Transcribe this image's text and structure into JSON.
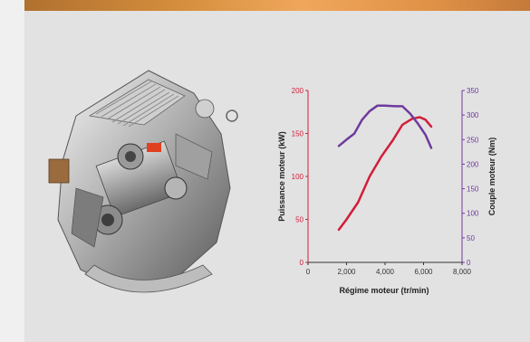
{
  "colors": {
    "power": "#d21d3a",
    "torque": "#6e3a9e",
    "panel": "#e2e2e2",
    "banner": "#d48d3c"
  },
  "image": {
    "icon": "engine-illustration"
  },
  "chart_data": {
    "type": "line",
    "xlabel": "Régime moteur (tr/min)",
    "ylabel": "Puissance moteur (kW)",
    "y2label": "Couple moteur (Nm)",
    "xlim": [
      0,
      8000
    ],
    "ylim": [
      0,
      200
    ],
    "y2lim": [
      0,
      350
    ],
    "x_ticks": [
      "0",
      "2,000",
      "4,000",
      "6,000",
      "8,000"
    ],
    "y_ticks": [
      "0",
      "50",
      "100",
      "150",
      "200"
    ],
    "y2_ticks": [
      "0",
      "50",
      "100",
      "150",
      "200",
      "250",
      "300",
      "350"
    ],
    "grid": false,
    "series": [
      {
        "axis": "left",
        "color": "#d21d3a",
        "points": [
          [
            1600,
            38
          ],
          [
            2000,
            50
          ],
          [
            2600,
            70
          ],
          [
            3200,
            100
          ],
          [
            3800,
            123
          ],
          [
            4400,
            142
          ],
          [
            4900,
            160
          ],
          [
            5400,
            167
          ],
          [
            5800,
            169
          ],
          [
            6100,
            166
          ],
          [
            6400,
            158
          ]
        ]
      },
      {
        "axis": "right",
        "color": "#6e3a9e",
        "points": [
          [
            1600,
            237
          ],
          [
            2000,
            250
          ],
          [
            2400,
            262
          ],
          [
            2800,
            290
          ],
          [
            3200,
            308
          ],
          [
            3600,
            319
          ],
          [
            4000,
            319
          ],
          [
            4500,
            318
          ],
          [
            4900,
            318
          ],
          [
            5300,
            303
          ],
          [
            5700,
            283
          ],
          [
            6100,
            260
          ],
          [
            6400,
            233
          ]
        ]
      }
    ]
  }
}
